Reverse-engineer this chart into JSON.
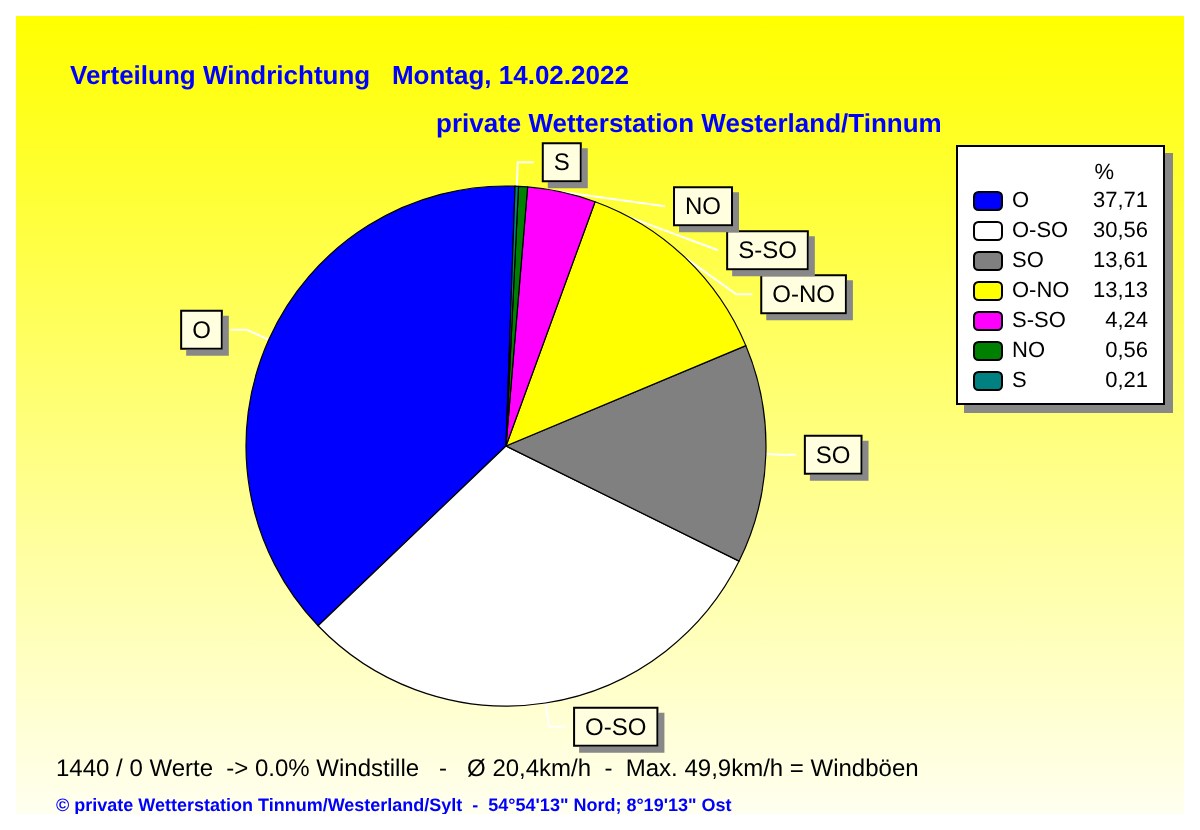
{
  "chart_data": {
    "type": "pie",
    "title": "Verteilung Windrichtung   Montag, 14.02.2022",
    "subtitle": "private Wetterstation Westerland/Tinnum",
    "categories": [
      "O",
      "O-SO",
      "SO",
      "O-NO",
      "S-SO",
      "NO",
      "S"
    ],
    "values": [
      37.71,
      30.56,
      13.61,
      13.13,
      4.24,
      0.56,
      0.21
    ],
    "value_labels": [
      "37,71",
      "30,56",
      "13,61",
      "13,13",
      "4,24",
      "0,56",
      "0,21"
    ],
    "colors": [
      "#0000ff",
      "#ffffff",
      "#808080",
      "#ffff00",
      "#ff00ff",
      "#008000",
      "#008080"
    ],
    "legend": "top right",
    "legend_title": "%",
    "annotations": [
      "1440 / 0 Werte  -> 0.0% Windstille   -   Ø 20,4km/h  -  Max. 49,9km/h = Windböen",
      "© private Wetterstation Tinnum/Westerland/Sylt  -  54°54'13\" Nord; 8°19'13\" Ost"
    ]
  }
}
